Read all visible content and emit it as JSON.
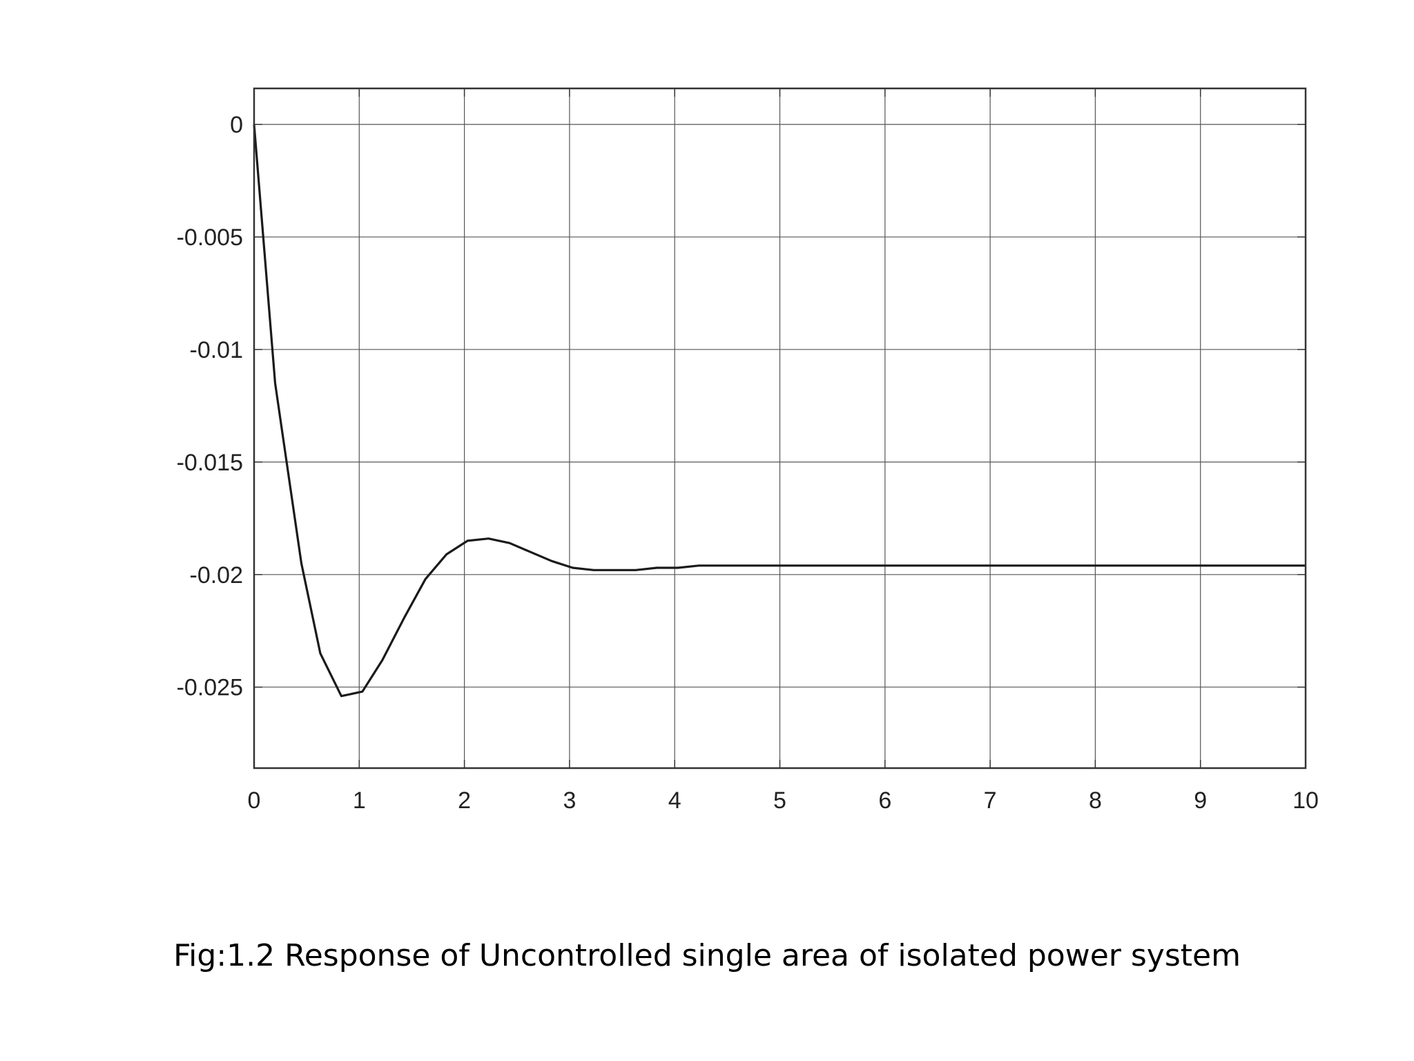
{
  "caption": "Fig:1.2 Response of Uncontrolled single area of isolated power system",
  "colors": {
    "background": "#ffffff",
    "line": "#1a1a1a",
    "grid": "#555555",
    "axis": "#333333",
    "text": "#222222"
  },
  "chart_data": {
    "type": "line",
    "title": "",
    "xlabel": "",
    "ylabel": "",
    "xlim": [
      0,
      10
    ],
    "ylim": [
      -0.0286,
      0.0016
    ],
    "grid": true,
    "x_ticks": [
      0,
      1,
      2,
      3,
      4,
      5,
      6,
      7,
      8,
      9,
      10
    ],
    "x_tick_labels": [
      "0",
      "1",
      "2",
      "3",
      "4",
      "5",
      "6",
      "7",
      "8",
      "9",
      "10"
    ],
    "y_ticks": [
      0,
      -0.005,
      -0.01,
      -0.015,
      -0.02,
      -0.025
    ],
    "y_tick_labels": [
      "0",
      "-0.005",
      "-0.01",
      "-0.015",
      "-0.02",
      "-0.025"
    ],
    "series": [
      {
        "x": [
          0,
          0.2,
          0.45,
          0.63,
          0.83,
          1.03,
          1.22,
          1.43,
          1.63,
          1.83,
          2.03,
          2.23,
          2.43,
          2.63,
          2.83,
          3.03,
          3.23,
          3.43,
          3.63,
          3.83,
          4.03,
          4.23,
          4.43,
          4.63,
          4.83,
          5.0,
          5.5,
          6.0,
          7.0,
          8.0,
          9.0,
          10.0
        ],
        "y": [
          0,
          -0.0115,
          -0.0195,
          -0.0235,
          -0.0254,
          -0.0252,
          -0.0238,
          -0.0219,
          -0.0202,
          -0.0191,
          -0.0185,
          -0.0184,
          -0.0186,
          -0.019,
          -0.0194,
          -0.0197,
          -0.0198,
          -0.0198,
          -0.0198,
          -0.0197,
          -0.0197,
          -0.0196,
          -0.0196,
          -0.0196,
          -0.0196,
          -0.0196,
          -0.0196,
          -0.0196,
          -0.0196,
          -0.0196,
          -0.0196,
          -0.0196
        ]
      }
    ]
  }
}
